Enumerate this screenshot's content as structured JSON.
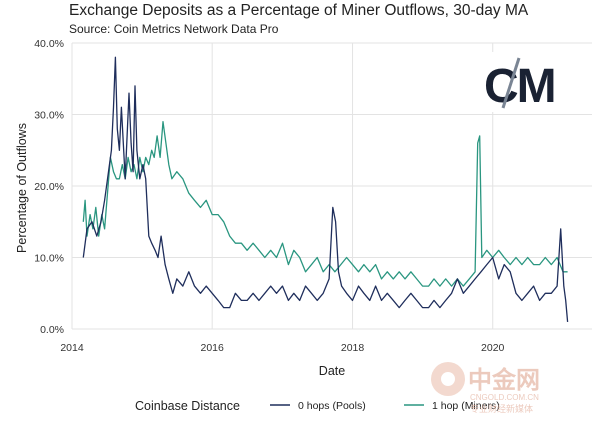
{
  "chart_data": {
    "type": "line",
    "title": "Exchange Deposits as a Percentage of Miner Outflows, 30-day MA",
    "subtitle": "Source: Coin Metrics Network Data Pro",
    "xlabel": "Date",
    "ylabel": "Percentage of Outflows",
    "xlim": [
      "2014-01-01",
      "2021-06-01"
    ],
    "ylim": [
      0,
      40
    ],
    "x_ticks": [
      "2014",
      "2016",
      "2018",
      "2020"
    ],
    "y_ticks": [
      "0.0%",
      "10.0%",
      "20.0%",
      "30.0%",
      "40.0%"
    ],
    "grid": true,
    "legend": {
      "title": "Coinbase Distance",
      "placement": "bottom"
    },
    "series": [
      {
        "name": "0 hops (Pools)",
        "color": "#1f2e5c",
        "points": [
          [
            "2014-03-01",
            10
          ],
          [
            "2014-03-20",
            14
          ],
          [
            "2014-04-15",
            15
          ],
          [
            "2014-05-10",
            13
          ],
          [
            "2014-06-01",
            15
          ],
          [
            "2014-06-20",
            18
          ],
          [
            "2014-07-10",
            22
          ],
          [
            "2014-07-25",
            25
          ],
          [
            "2014-08-05",
            31
          ],
          [
            "2014-08-15",
            38
          ],
          [
            "2014-08-25",
            28
          ],
          [
            "2014-09-05",
            25
          ],
          [
            "2014-09-15",
            31
          ],
          [
            "2014-09-25",
            26
          ],
          [
            "2014-10-05",
            21
          ],
          [
            "2014-10-15",
            27
          ],
          [
            "2014-10-25",
            33
          ],
          [
            "2014-11-05",
            26
          ],
          [
            "2014-11-15",
            22
          ],
          [
            "2014-11-25",
            34
          ],
          [
            "2014-12-05",
            25
          ],
          [
            "2014-12-20",
            21
          ],
          [
            "2015-01-05",
            23
          ],
          [
            "2015-01-20",
            21
          ],
          [
            "2015-02-05",
            13
          ],
          [
            "2015-02-20",
            12
          ],
          [
            "2015-03-10",
            11
          ],
          [
            "2015-03-25",
            10
          ],
          [
            "2015-04-10",
            13
          ],
          [
            "2015-05-01",
            9
          ],
          [
            "2015-05-20",
            7
          ],
          [
            "2015-06-10",
            5
          ],
          [
            "2015-07-01",
            7
          ],
          [
            "2015-08-01",
            6
          ],
          [
            "2015-09-01",
            8
          ],
          [
            "2015-10-01",
            6
          ],
          [
            "2015-11-01",
            5
          ],
          [
            "2015-12-01",
            6
          ],
          [
            "2016-01-01",
            5
          ],
          [
            "2016-02-01",
            4
          ],
          [
            "2016-03-01",
            3
          ],
          [
            "2016-04-01",
            3
          ],
          [
            "2016-05-01",
            5
          ],
          [
            "2016-06-01",
            4
          ],
          [
            "2016-07-01",
            4
          ],
          [
            "2016-08-01",
            5
          ],
          [
            "2016-09-01",
            4
          ],
          [
            "2016-10-01",
            5
          ],
          [
            "2016-11-01",
            6
          ],
          [
            "2016-12-01",
            5
          ],
          [
            "2017-01-01",
            6
          ],
          [
            "2017-02-01",
            4
          ],
          [
            "2017-03-01",
            5
          ],
          [
            "2017-04-01",
            4
          ],
          [
            "2017-05-01",
            6
          ],
          [
            "2017-06-01",
            5
          ],
          [
            "2017-07-01",
            4
          ],
          [
            "2017-08-01",
            5
          ],
          [
            "2017-09-01",
            7
          ],
          [
            "2017-09-20",
            17
          ],
          [
            "2017-10-05",
            15
          ],
          [
            "2017-10-20",
            8
          ],
          [
            "2017-11-05",
            6
          ],
          [
            "2017-12-01",
            5
          ],
          [
            "2018-01-01",
            4
          ],
          [
            "2018-02-01",
            6
          ],
          [
            "2018-03-01",
            5
          ],
          [
            "2018-04-01",
            4
          ],
          [
            "2018-05-01",
            6
          ],
          [
            "2018-06-01",
            4
          ],
          [
            "2018-07-01",
            5
          ],
          [
            "2018-08-01",
            4
          ],
          [
            "2018-09-01",
            3
          ],
          [
            "2018-10-01",
            4
          ],
          [
            "2018-11-01",
            5
          ],
          [
            "2018-12-01",
            4
          ],
          [
            "2019-01-01",
            3
          ],
          [
            "2019-02-01",
            3
          ],
          [
            "2019-03-01",
            4
          ],
          [
            "2019-04-01",
            3
          ],
          [
            "2019-05-01",
            4
          ],
          [
            "2019-06-01",
            5
          ],
          [
            "2019-07-01",
            7
          ],
          [
            "2019-08-01",
            5
          ],
          [
            "2019-09-01",
            6
          ],
          [
            "2019-10-01",
            7
          ],
          [
            "2019-11-01",
            8
          ],
          [
            "2019-12-01",
            9
          ],
          [
            "2020-01-01",
            10
          ],
          [
            "2020-02-01",
            7
          ],
          [
            "2020-03-01",
            9
          ],
          [
            "2020-04-01",
            8
          ],
          [
            "2020-05-01",
            5
          ],
          [
            "2020-06-01",
            4
          ],
          [
            "2020-07-01",
            5
          ],
          [
            "2020-08-01",
            6
          ],
          [
            "2020-09-01",
            4
          ],
          [
            "2020-10-01",
            5
          ],
          [
            "2020-11-01",
            5
          ],
          [
            "2020-12-01",
            6
          ],
          [
            "2020-12-20",
            14
          ],
          [
            "2021-01-05",
            6
          ],
          [
            "2021-01-15",
            4
          ],
          [
            "2021-01-25",
            1
          ]
        ]
      },
      {
        "name": "1 hop (Miners)",
        "color": "#2a9680",
        "points": [
          [
            "2014-03-01",
            15
          ],
          [
            "2014-03-10",
            18
          ],
          [
            "2014-03-20",
            13
          ],
          [
            "2014-04-05",
            16
          ],
          [
            "2014-04-20",
            14
          ],
          [
            "2014-05-05",
            17
          ],
          [
            "2014-05-20",
            13
          ],
          [
            "2014-06-05",
            16
          ],
          [
            "2014-06-20",
            14
          ],
          [
            "2014-07-05",
            19
          ],
          [
            "2014-07-20",
            24
          ],
          [
            "2014-08-05",
            22
          ],
          [
            "2014-08-20",
            21
          ],
          [
            "2014-09-05",
            21
          ],
          [
            "2014-09-20",
            23
          ],
          [
            "2014-10-05",
            21
          ],
          [
            "2014-10-20",
            24
          ],
          [
            "2014-11-05",
            22
          ],
          [
            "2014-11-20",
            23
          ],
          [
            "2014-12-05",
            21
          ],
          [
            "2014-12-20",
            24
          ],
          [
            "2015-01-05",
            22
          ],
          [
            "2015-01-20",
            24
          ],
          [
            "2015-02-05",
            23
          ],
          [
            "2015-02-20",
            25
          ],
          [
            "2015-03-05",
            24
          ],
          [
            "2015-03-20",
            27
          ],
          [
            "2015-04-05",
            24
          ],
          [
            "2015-04-20",
            29
          ],
          [
            "2015-05-05",
            26
          ],
          [
            "2015-05-20",
            23
          ],
          [
            "2015-06-05",
            21
          ],
          [
            "2015-07-01",
            22
          ],
          [
            "2015-08-01",
            21
          ],
          [
            "2015-09-01",
            19
          ],
          [
            "2015-10-01",
            18
          ],
          [
            "2015-11-01",
            17
          ],
          [
            "2015-12-01",
            18
          ],
          [
            "2016-01-01",
            16
          ],
          [
            "2016-02-01",
            16
          ],
          [
            "2016-03-01",
            15
          ],
          [
            "2016-04-01",
            13
          ],
          [
            "2016-05-01",
            12
          ],
          [
            "2016-06-01",
            12
          ],
          [
            "2016-07-01",
            11
          ],
          [
            "2016-08-01",
            12
          ],
          [
            "2016-09-01",
            11
          ],
          [
            "2016-10-01",
            10
          ],
          [
            "2016-11-01",
            11
          ],
          [
            "2016-12-01",
            10
          ],
          [
            "2017-01-01",
            12
          ],
          [
            "2017-02-01",
            9
          ],
          [
            "2017-03-01",
            11
          ],
          [
            "2017-04-01",
            10
          ],
          [
            "2017-05-01",
            8
          ],
          [
            "2017-06-01",
            9
          ],
          [
            "2017-07-01",
            10
          ],
          [
            "2017-08-01",
            8
          ],
          [
            "2017-09-01",
            9
          ],
          [
            "2017-10-01",
            8
          ],
          [
            "2017-11-01",
            9
          ],
          [
            "2017-12-01",
            10
          ],
          [
            "2018-01-01",
            9
          ],
          [
            "2018-02-01",
            8
          ],
          [
            "2018-03-01",
            9
          ],
          [
            "2018-04-01",
            8
          ],
          [
            "2018-05-01",
            9
          ],
          [
            "2018-06-01",
            7
          ],
          [
            "2018-07-01",
            8
          ],
          [
            "2018-08-01",
            7
          ],
          [
            "2018-09-01",
            8
          ],
          [
            "2018-10-01",
            7
          ],
          [
            "2018-11-01",
            8
          ],
          [
            "2018-12-01",
            7
          ],
          [
            "2019-01-01",
            6
          ],
          [
            "2019-02-01",
            6
          ],
          [
            "2019-03-01",
            7
          ],
          [
            "2019-04-01",
            6
          ],
          [
            "2019-05-01",
            7
          ],
          [
            "2019-06-01",
            6
          ],
          [
            "2019-07-01",
            7
          ],
          [
            "2019-08-01",
            6
          ],
          [
            "2019-09-01",
            7
          ],
          [
            "2019-10-01",
            8
          ],
          [
            "2019-10-15",
            26
          ],
          [
            "2019-10-25",
            27
          ],
          [
            "2019-11-05",
            10
          ],
          [
            "2019-12-01",
            11
          ],
          [
            "2020-01-01",
            10
          ],
          [
            "2020-02-01",
            11
          ],
          [
            "2020-03-01",
            10
          ],
          [
            "2020-04-01",
            9
          ],
          [
            "2020-05-01",
            10
          ],
          [
            "2020-06-01",
            9
          ],
          [
            "2020-07-01",
            10
          ],
          [
            "2020-08-01",
            9
          ],
          [
            "2020-09-01",
            9
          ],
          [
            "2020-10-01",
            10
          ],
          [
            "2020-11-01",
            9
          ],
          [
            "2020-12-01",
            10
          ],
          [
            "2021-01-01",
            8
          ],
          [
            "2021-01-25",
            8
          ]
        ]
      }
    ]
  },
  "logo": {
    "text": "CM",
    "color": "#1a2233",
    "accent": "#7a8594"
  },
  "watermark": {
    "text": "中金网",
    "subtext": "CNGOLD.COM.CN",
    "tagline": "专业财经新媒体",
    "color": "#e6b9a8"
  }
}
